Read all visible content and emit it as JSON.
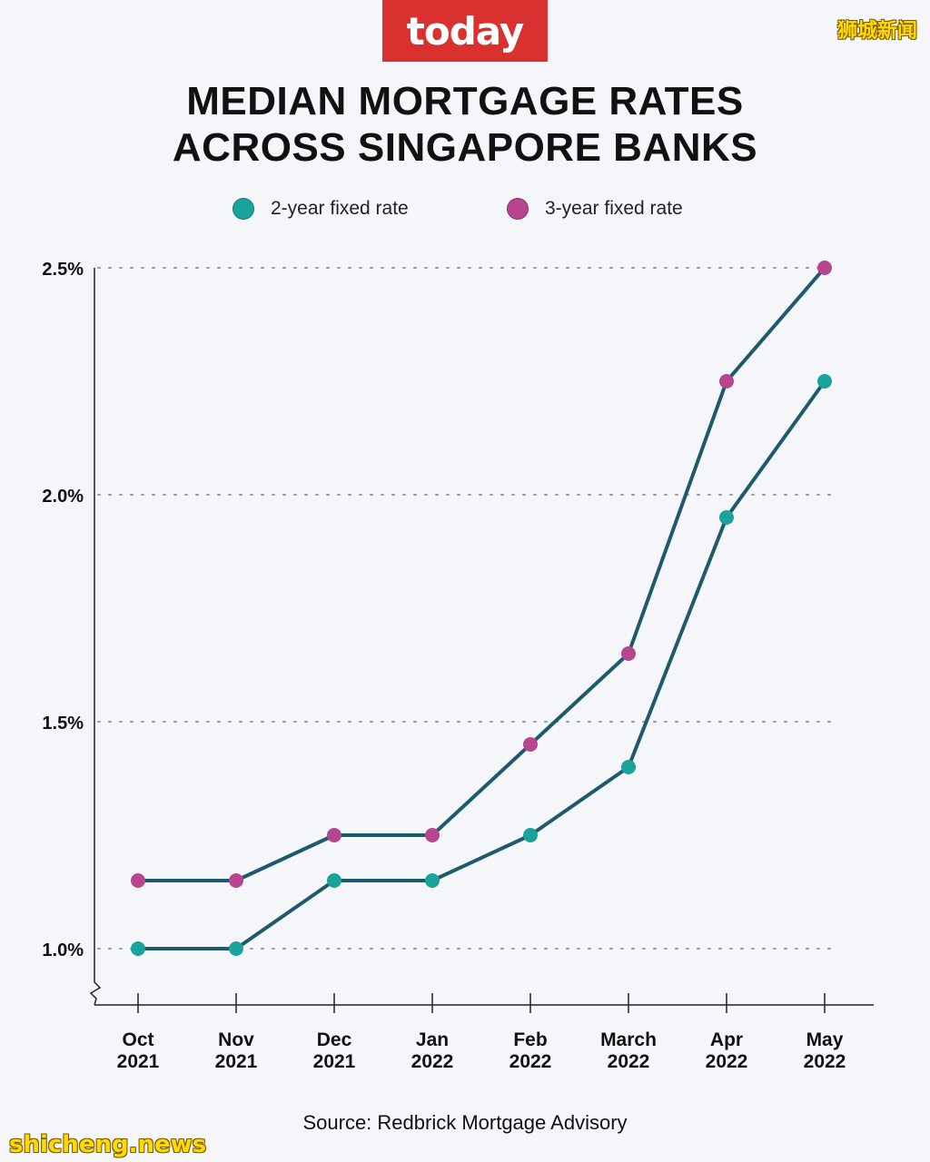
{
  "logo": "today",
  "watermark_top": "狮城新闻",
  "watermark_bottom": "shicheng.news",
  "title_lines": [
    "MEDIAN MORTGAGE RATES",
    "ACROSS SINGAPORE BANKS"
  ],
  "source": "Source: Redbrick Mortgage Advisory",
  "colors": {
    "series_2yr": "#1aa39a",
    "series_3yr": "#b8468f",
    "brand": "#d9312f"
  },
  "chart_data": {
    "type": "line",
    "x": [
      [
        "Oct",
        "2021"
      ],
      [
        "Nov",
        "2021"
      ],
      [
        "Dec",
        "2021"
      ],
      [
        "Jan",
        "2022"
      ],
      [
        "Feb",
        "2022"
      ],
      [
        "March",
        "2022"
      ],
      [
        "Apr",
        "2022"
      ],
      [
        "May",
        "2022"
      ]
    ],
    "series": [
      {
        "name": "2-year fixed rate",
        "color": "#1aa39a",
        "values": [
          1.0,
          1.0,
          1.15,
          1.15,
          1.25,
          1.4,
          1.95,
          2.25
        ]
      },
      {
        "name": "3-year fixed rate",
        "color": "#b8468f",
        "values": [
          1.15,
          1.15,
          1.25,
          1.25,
          1.45,
          1.65,
          2.25,
          2.5
        ]
      }
    ],
    "yticks": [
      1.0,
      1.5,
      2.0,
      2.5
    ],
    "ytick_labels": [
      "1.0%",
      "1.5%",
      "2.0%",
      "2.5%"
    ],
    "ylim": [
      0.88,
      2.5
    ],
    "grid": "horizontal dotted",
    "legend": "top",
    "axis_break": "y"
  }
}
